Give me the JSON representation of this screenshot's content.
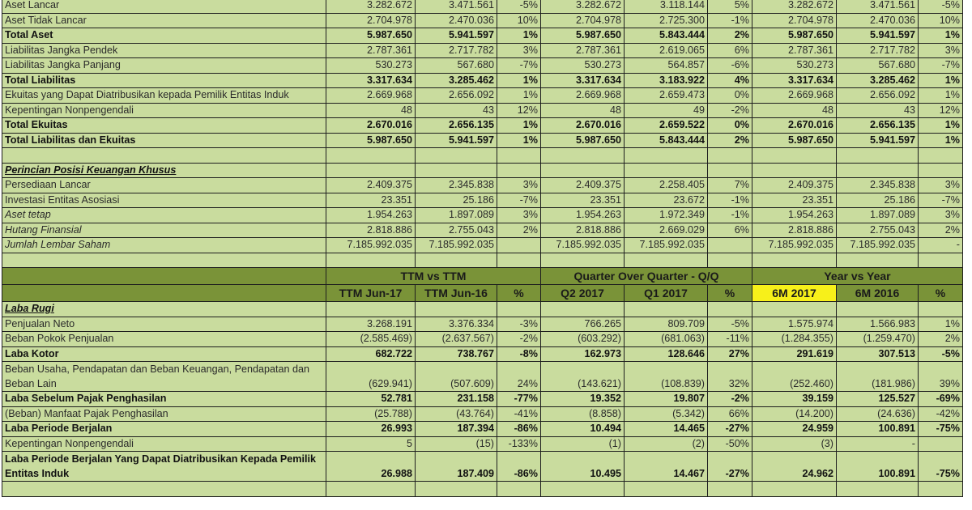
{
  "balance_sheet": {
    "rows": [
      {
        "label": "Aset Lancar",
        "style": "normal",
        "values": [
          "3.282.672",
          "3.471.561",
          "-5%",
          "3.282.672",
          "3.118.144",
          "5%",
          "3.282.672",
          "3.471.561",
          "-5%"
        ]
      },
      {
        "label": "Aset Tidak Lancar",
        "style": "normal",
        "values": [
          "2.704.978",
          "2.470.036",
          "10%",
          "2.704.978",
          "2.725.300",
          "-1%",
          "2.704.978",
          "2.470.036",
          "10%"
        ]
      },
      {
        "label": "Total Aset",
        "style": "bold",
        "values": [
          "5.987.650",
          "5.941.597",
          "1%",
          "5.987.650",
          "5.843.444",
          "2%",
          "5.987.650",
          "5.941.597",
          "1%"
        ]
      },
      {
        "label": "Liabilitas Jangka Pendek",
        "style": "normal",
        "values": [
          "2.787.361",
          "2.717.782",
          "3%",
          "2.787.361",
          "2.619.065",
          "6%",
          "2.787.361",
          "2.717.782",
          "3%"
        ]
      },
      {
        "label": "Liabilitas Jangka Panjang",
        "style": "normal",
        "values": [
          "530.273",
          "567.680",
          "-7%",
          "530.273",
          "564.857",
          "-6%",
          "530.273",
          "567.680",
          "-7%"
        ]
      },
      {
        "label": "Total Liabilitas",
        "style": "bold",
        "values": [
          "3.317.634",
          "3.285.462",
          "1%",
          "3.317.634",
          "3.183.922",
          "4%",
          "3.317.634",
          "3.285.462",
          "1%"
        ]
      },
      {
        "label": "Ekuitas yang Dapat Diatribusikan kepada Pemilik Entitas Induk",
        "style": "normal",
        "values": [
          "2.669.968",
          "2.656.092",
          "1%",
          "2.669.968",
          "2.659.473",
          "0%",
          "2.669.968",
          "2.656.092",
          "1%"
        ]
      },
      {
        "label": "Kepentingan Nonpengendali",
        "style": "normal",
        "values": [
          "48",
          "43",
          "12%",
          "48",
          "49",
          "-2%",
          "48",
          "43",
          "12%"
        ]
      },
      {
        "label": "Total Ekuitas",
        "style": "bold",
        "values": [
          "2.670.016",
          "2.656.135",
          "1%",
          "2.670.016",
          "2.659.522",
          "0%",
          "2.670.016",
          "2.656.135",
          "1%"
        ]
      },
      {
        "label": "Total Liabilitas dan Ekuitas",
        "style": "bold",
        "values": [
          "5.987.650",
          "5.941.597",
          "1%",
          "5.987.650",
          "5.843.444",
          "2%",
          "5.987.650",
          "5.941.597",
          "1%"
        ]
      }
    ]
  },
  "special_position": {
    "title": "Perincian Posisi Keuangan Khusus",
    "rows": [
      {
        "label": "Persediaan Lancar",
        "style": "normal",
        "values": [
          "2.409.375",
          "2.345.838",
          "3%",
          "2.409.375",
          "2.258.405",
          "7%",
          "2.409.375",
          "2.345.838",
          "3%"
        ]
      },
      {
        "label": "Investasi Entitas Asosiasi",
        "style": "normal",
        "values": [
          "23.351",
          "25.186",
          "-7%",
          "23.351",
          "23.672",
          "-1%",
          "23.351",
          "25.186",
          "-7%"
        ]
      },
      {
        "label": "Aset tetap",
        "style": "italic",
        "values": [
          "1.954.263",
          "1.897.089",
          "3%",
          "1.954.263",
          "1.972.349",
          "-1%",
          "1.954.263",
          "1.897.089",
          "3%"
        ]
      },
      {
        "label": "Hutang Finansial",
        "style": "italic",
        "values": [
          "2.818.886",
          "2.755.043",
          "2%",
          "2.818.886",
          "2.669.029",
          "6%",
          "2.818.886",
          "2.755.043",
          "2%"
        ]
      },
      {
        "label": "Jumlah Lembar Saham",
        "style": "italic",
        "values": [
          "7.185.992.035",
          "7.185.992.035",
          "",
          "7.185.992.035",
          "7.185.992.035",
          "",
          "7.185.992.035",
          "7.185.992.035",
          "-"
        ]
      }
    ]
  },
  "header": {
    "groups": [
      "TTM vs TTM",
      "Quarter Over Quarter - Q/Q",
      "Year vs Year"
    ],
    "columns": [
      "TTM Jun-17",
      "TTM Jun-16",
      "%",
      "Q2 2017",
      "Q1 2017",
      "%",
      "6M 2017",
      "6M 2016",
      "%"
    ],
    "highlight_color": "#f7f01a",
    "header_color": "#7a9338",
    "cell_color": "#c9dc9e"
  },
  "income_statement": {
    "title": "Laba Rugi",
    "rows": [
      {
        "label": "Penjualan Neto",
        "style": "normal",
        "values": [
          "3.268.191",
          "3.376.334",
          "-3%",
          "766.265",
          "809.709",
          "-5%",
          "1.575.974",
          "1.566.983",
          "1%"
        ]
      },
      {
        "label": "Beban Pokok Penjualan",
        "style": "normal",
        "values": [
          "(2.585.469)",
          "(2.637.567)",
          "-2%",
          "(603.292)",
          "(681.063)",
          "-11%",
          "(1.284.355)",
          "(1.259.470)",
          "2%"
        ]
      },
      {
        "label": "Laba Kotor",
        "style": "bold",
        "values": [
          "682.722",
          "738.767",
          "-8%",
          "162.973",
          "128.646",
          "27%",
          "291.619",
          "307.513",
          "-5%"
        ]
      },
      {
        "label": "Beban Usaha, Pendapatan dan Beban Keuangan, Pendapatan dan Beban Lain",
        "style": "tall",
        "values": [
          "(629.941)",
          "(507.609)",
          "24%",
          "(143.621)",
          "(108.839)",
          "32%",
          "(252.460)",
          "(181.986)",
          "39%"
        ]
      },
      {
        "label": "Laba Sebelum Pajak Penghasilan",
        "style": "bold",
        "values": [
          "52.781",
          "231.158",
          "-77%",
          "19.352",
          "19.807",
          "-2%",
          "39.159",
          "125.527",
          "-69%"
        ]
      },
      {
        "label": "(Beban) Manfaat Pajak Penghasilan",
        "style": "normal",
        "values": [
          "(25.788)",
          "(43.764)",
          "-41%",
          "(8.858)",
          "(5.342)",
          "66%",
          "(14.200)",
          "(24.636)",
          "-42%"
        ]
      },
      {
        "label": "Laba Periode Berjalan",
        "style": "bold",
        "values": [
          "26.993",
          "187.394",
          "-86%",
          "10.494",
          "14.465",
          "-27%",
          "24.959",
          "100.891",
          "-75%"
        ]
      },
      {
        "label": "Kepentingan Nonpengendali",
        "style": "normal",
        "values": [
          "5",
          "(15)",
          "-133%",
          "(1)",
          "(2)",
          "-50%",
          "(3)",
          "-",
          ""
        ]
      },
      {
        "label": "Laba Periode Berjalan Yang Dapat Diatribusikan Kepada Pemilik Entitas Induk",
        "style": "tallbold",
        "values": [
          "26.988",
          "187.409",
          "-86%",
          "10.495",
          "14.467",
          "-27%",
          "24.962",
          "100.891",
          "-75%"
        ]
      }
    ]
  }
}
